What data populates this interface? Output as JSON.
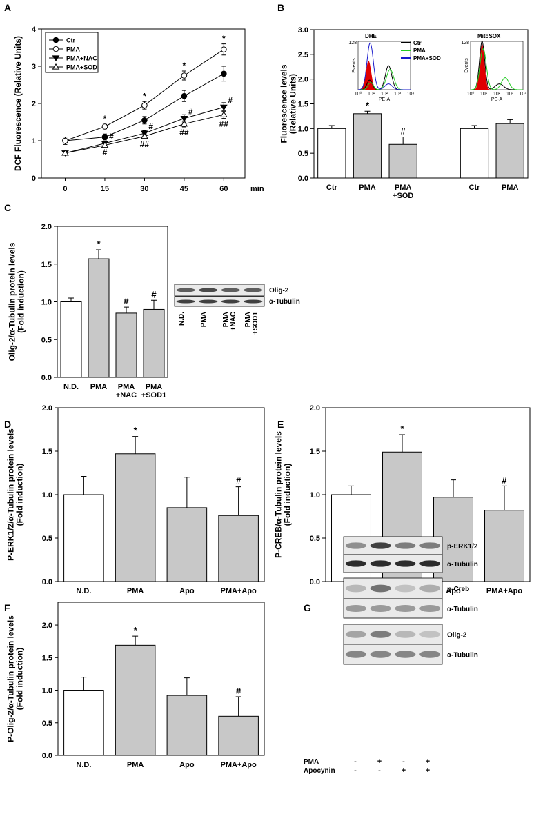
{
  "chart_data": [
    {
      "panel": "A",
      "type": "line",
      "ylabel": "DCF Fluorescence (Relative Units)",
      "xlabel": "min",
      "x": [
        0,
        15,
        30,
        45,
        60
      ],
      "xlim": [
        -9,
        68
      ],
      "xticks": [
        0,
        15,
        30,
        45,
        60
      ],
      "ylim": [
        0,
        4
      ],
      "yticks": [
        0,
        1,
        2,
        3,
        4
      ],
      "series": [
        {
          "name": "Ctr",
          "marker": "circle-filled",
          "values": [
            1.0,
            1.1,
            1.55,
            2.2,
            2.8
          ],
          "errors": [
            0.05,
            0.08,
            0.1,
            0.15,
            0.2
          ],
          "annotations": [
            null,
            null,
            null,
            null,
            null
          ]
        },
        {
          "name": "PMA",
          "marker": "circle-open",
          "values": [
            1.0,
            1.38,
            1.95,
            2.75,
            3.45
          ],
          "errors": [
            0.1,
            0.06,
            0.1,
            0.12,
            0.15
          ],
          "annotations": [
            null,
            "*",
            "*",
            "*",
            "*"
          ]
        },
        {
          "name": "PMA+NAC",
          "marker": "triangle-down-filled",
          "values": [
            0.67,
            0.93,
            1.2,
            1.6,
            1.9
          ],
          "errors": [
            0.04,
            0.05,
            0.07,
            0.1,
            0.12
          ],
          "annotations": [
            null,
            "#",
            "#",
            "#",
            "#"
          ]
        },
        {
          "name": "PMA+SOD",
          "marker": "triangle-up-open",
          "values": [
            0.67,
            0.88,
            1.12,
            1.45,
            1.7
          ],
          "errors": [
            0.04,
            0.05,
            0.06,
            0.08,
            0.1
          ],
          "annotations": [
            null,
            "#",
            "##",
            "##",
            "##"
          ]
        }
      ]
    },
    {
      "panel": "B",
      "type": "bar",
      "ylabel": "Fluorescence levels\n(Relative Units)",
      "categories": [
        "Ctr",
        "PMA",
        "PMA\n+SOD",
        null,
        "Ctr",
        "PMA"
      ],
      "values": [
        1.0,
        1.3,
        0.68,
        null,
        1.0,
        1.1
      ],
      "errors": [
        0.06,
        0.05,
        0.15,
        null,
        0.06,
        0.08
      ],
      "annotations": [
        null,
        "*",
        "#",
        null,
        null,
        null
      ],
      "colors": [
        "#ffffff",
        "#c8c8c8",
        "#c8c8c8",
        null,
        "#ffffff",
        "#c8c8c8"
      ],
      "ylim": [
        0,
        3
      ],
      "yticks": [
        {
          "value": 0,
          "label": "0.0"
        },
        0.5,
        {
          "value": 1,
          "label": "1.0"
        },
        1.5,
        {
          "value": 2,
          "label": "2.0"
        },
        2.5,
        {
          "value": 3,
          "label": "3.0"
        }
      ],
      "insets": [
        {
          "title": "DHE",
          "ylabel": "Events",
          "xlabel": "PE-A",
          "ytop": "128",
          "xticks": [
            "10⁰",
            "10¹",
            "10²",
            "10³",
            "10⁴"
          ],
          "fill_color": "#e00000",
          "legend": [
            {
              "name": "Ctr",
              "color": "#000000"
            },
            {
              "name": "PMA",
              "color": "#22cc22"
            },
            {
              "name": "PMA+SOD",
              "color": "#1a1acc"
            }
          ]
        },
        {
          "title": "MitoSOX",
          "ylabel": "Events",
          "xlabel": "PE-A",
          "ytop": "128",
          "xticks": [
            "10⁰",
            "10¹",
            "10²",
            "10³",
            "10⁴"
          ],
          "fill_color": "#e00000"
        }
      ]
    },
    {
      "panel": "C",
      "type": "bar",
      "ylabel": "Olig-2/α-Tubulin protein levels\n(Fold induction)",
      "categories": [
        "N.D.",
        "PMA",
        "PMA\n+NAC",
        "PMA\n+SOD1"
      ],
      "values": [
        1.0,
        1.57,
        0.85,
        0.9
      ],
      "errors": [
        0.05,
        0.12,
        0.08,
        0.12
      ],
      "annotations": [
        null,
        "*",
        "#",
        "#"
      ],
      "colors": [
        "#ffffff",
        "#c8c8c8",
        "#c8c8c8",
        "#c8c8c8"
      ],
      "ylim": [
        0,
        2
      ],
      "yticks": [
        {
          "value": 0,
          "label": "0.0"
        },
        0.5,
        {
          "value": 1,
          "label": "1.0"
        },
        1.5,
        {
          "value": 2,
          "label": "2.0"
        }
      ]
    },
    {
      "panel": "D",
      "type": "bar",
      "ylabel": "P-ERK1/2/α-Tubulin protein levels\n(Fold induction)",
      "categories": [
        "N.D.",
        "PMA",
        "Apo",
        "PMA+Apo"
      ],
      "values": [
        1.0,
        1.47,
        0.85,
        0.76
      ],
      "errors": [
        0.21,
        0.2,
        0.35,
        0.33
      ],
      "annotations": [
        null,
        "*",
        null,
        "#"
      ],
      "colors": [
        "#ffffff",
        "#c8c8c8",
        "#c8c8c8",
        "#c8c8c8"
      ],
      "ylim": [
        0,
        2
      ],
      "yticks": [
        {
          "value": 0,
          "label": "0.0"
        },
        0.5,
        {
          "value": 1,
          "label": "1.0"
        },
        1.5,
        {
          "value": 2,
          "label": "2.0"
        }
      ]
    },
    {
      "panel": "E",
      "type": "bar",
      "ylabel": "P-CREB/α-Tubulin protein levels\n(Fold induction)",
      "categories": [
        "N.D.",
        "PMA",
        "Apo",
        "PMA+Apo"
      ],
      "values": [
        1.0,
        1.49,
        0.97,
        0.82
      ],
      "errors": [
        0.1,
        0.2,
        0.2,
        0.28
      ],
      "annotations": [
        null,
        "*",
        null,
        "#"
      ],
      "colors": [
        "#ffffff",
        "#c8c8c8",
        "#c8c8c8",
        "#c8c8c8"
      ],
      "ylim": [
        0,
        2
      ],
      "yticks": [
        {
          "value": 0,
          "label": "0.0"
        },
        0.5,
        {
          "value": 1,
          "label": "1.0"
        },
        1.5,
        {
          "value": 2,
          "label": "2.0"
        }
      ]
    },
    {
      "panel": "F",
      "type": "bar",
      "ylabel": "P-Olig-2/α-Tubulin protein levels\n(Fold induction)",
      "categories": [
        "N.D.",
        "PMA",
        "Apo",
        "PMA+Apo"
      ],
      "values": [
        1.0,
        1.69,
        0.92,
        0.6
      ],
      "errors": [
        0.2,
        0.14,
        0.27,
        0.3
      ],
      "annotations": [
        null,
        "*",
        null,
        "#"
      ],
      "colors": [
        "#ffffff",
        "#c8c8c8",
        "#c8c8c8",
        "#c8c8c8"
      ],
      "ylim": [
        0,
        2.35
      ],
      "yticks": [
        {
          "value": 0,
          "label": "0.0"
        },
        0.5,
        {
          "value": 1,
          "label": "1.0"
        },
        1.5,
        {
          "value": 2,
          "label": "2.0"
        }
      ]
    }
  ],
  "blots": {
    "C": {
      "rows": [
        "Olig-2",
        "α-Tubulin"
      ],
      "lanes": [
        "N.D.",
        "PMA",
        "PMA\n+NAC",
        "PMA\n+SOD1"
      ]
    },
    "G": {
      "panel": "G",
      "rows": [
        "p-ERK1/2",
        "α-Tubulin",
        "p-Creb",
        "α-Tubulin",
        "Olig-2",
        "α-Tubulin"
      ],
      "conditions": [
        {
          "name": "PMA",
          "signs": [
            "-",
            "+",
            "-",
            "+"
          ]
        },
        {
          "name": "Apocynin",
          "signs": [
            "-",
            "-",
            "+",
            "+"
          ]
        }
      ]
    }
  }
}
